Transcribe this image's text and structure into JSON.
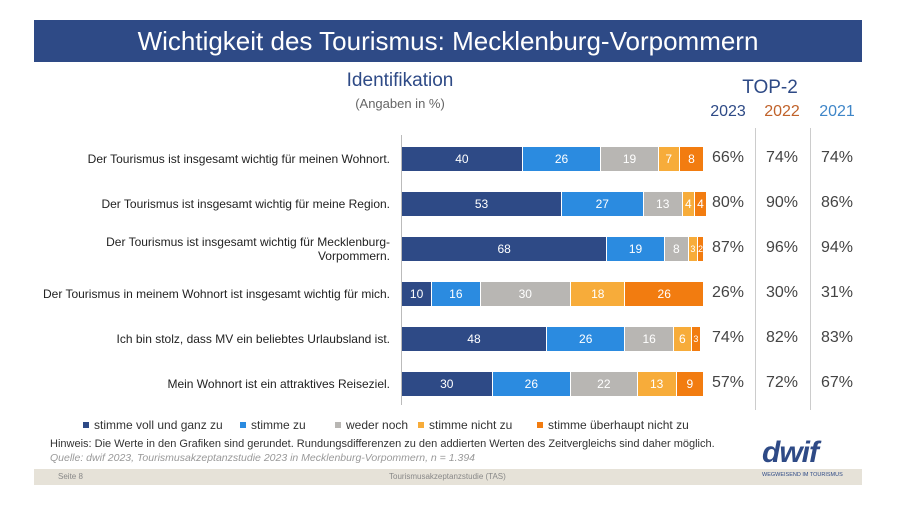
{
  "header": {
    "title": "Wichtigkeit des Tourismus: Mecklenburg-Vorpommern"
  },
  "chart_data": {
    "type": "bar",
    "orientation": "horizontal",
    "stacked": true,
    "title": "Identifikation",
    "subtitle": "(Angaben in %)",
    "categories": [
      "Der Tourismus ist insgesamt wichtig für meinen Wohnort.",
      "Der Tourismus ist insgesamt wichtig für meine Region.",
      "Der Tourismus ist insgesamt wichtig für Mecklenburg-Vorpommern.",
      "Der Tourismus in meinem Wohnort ist insgesamt wichtig für mich.",
      "Ich bin stolz, dass MV ein beliebtes Urlaubsland ist.",
      "Mein Wohnort ist ein attraktives Reiseziel."
    ],
    "series": [
      {
        "name": "stimme voll und ganz zu",
        "color": "#2e4a86",
        "values": [
          40,
          53,
          68,
          10,
          48,
          30
        ]
      },
      {
        "name": "stimme zu",
        "color": "#2b8be0",
        "values": [
          26,
          27,
          19,
          16,
          26,
          26
        ]
      },
      {
        "name": "weder noch",
        "color": "#b8b6b3",
        "values": [
          19,
          13,
          8,
          30,
          16,
          22
        ]
      },
      {
        "name": "stimme nicht zu",
        "color": "#f7ac3a",
        "values": [
          7,
          4,
          3,
          18,
          6,
          13
        ]
      },
      {
        "name": "stimme überhaupt nicht zu",
        "color": "#f27c10",
        "values": [
          8,
          4,
          2,
          26,
          3,
          9
        ]
      }
    ],
    "xlim": [
      0,
      100
    ],
    "legend": "bottom",
    "top2": {
      "title": "TOP-2",
      "years": [
        {
          "label": "2023",
          "color": "#2e4a86"
        },
        {
          "label": "2022",
          "color": "#c0622a"
        },
        {
          "label": "2021",
          "color": "#3f86c8"
        }
      ],
      "values": [
        [
          "66%",
          "74%",
          "74%"
        ],
        [
          "80%",
          "90%",
          "86%"
        ],
        [
          "87%",
          "96%",
          "94%"
        ],
        [
          "26%",
          "30%",
          "31%"
        ],
        [
          "74%",
          "82%",
          "83%"
        ],
        [
          "57%",
          "72%",
          "67%"
        ]
      ]
    }
  },
  "footer": {
    "note": "Hinweis: Die Werte in den Grafiken sind gerundet. Rundungsdifferenzen zu den addierten Werten des Zeitvergleichs sind daher möglich.",
    "source": "Quelle: dwif 2023, Tourismusakzeptanzstudie 2023 in Mecklenburg-Vorpommern, n = 1.394",
    "page": "Seite 8",
    "study": "Tourismusakzeptanzstudie (TAS)",
    "logo": "dwif",
    "tagline": "WEGWEISEND IM TOURISMUS"
  }
}
